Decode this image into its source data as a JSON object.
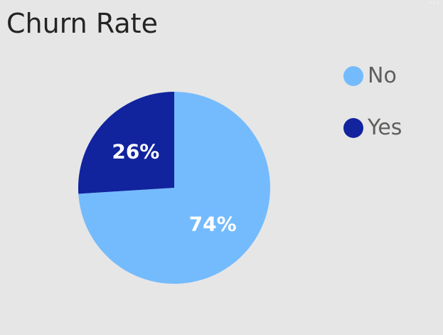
{
  "chart_data": {
    "type": "pie",
    "title": "Churn Rate",
    "categories": [
      "No",
      "Yes"
    ],
    "values": [
      74,
      26
    ],
    "labels": [
      "74%",
      "26%"
    ],
    "colors": [
      "#74bbfd",
      "#12239e"
    ],
    "legend": "right"
  },
  "theme": {
    "label_color": "#ffffff"
  }
}
